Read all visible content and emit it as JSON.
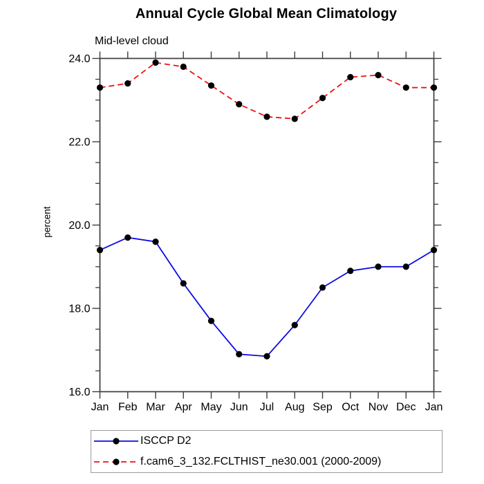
{
  "title": "Annual Cycle Global Mean Climatology",
  "subtitle": "Mid-level cloud",
  "ylabel": "percent",
  "colors": {
    "axis": "#3c3c3c",
    "marker": "#000000",
    "series_blue": "#0a0ae0",
    "series_red": "#ee1111",
    "legend_border": "#9a9a9a"
  },
  "chart_data": {
    "type": "line",
    "categories": [
      "Jan",
      "Feb",
      "Mar",
      "Apr",
      "May",
      "Jun",
      "Jul",
      "Aug",
      "Sep",
      "Oct",
      "Nov",
      "Dec",
      "Jan"
    ],
    "series": [
      {
        "name": "ISCCP D2",
        "color": "#0a0ae0",
        "line_style": "solid",
        "marker": "circle",
        "marker_color": "#000000",
        "values": [
          19.4,
          19.7,
          19.6,
          18.6,
          17.7,
          16.9,
          16.85,
          17.6,
          18.5,
          18.9,
          19.0,
          19.0,
          19.4
        ]
      },
      {
        "name": "f.cam6_3_132.FCLTHIST_ne30.001 (2000-2009)",
        "color": "#ee1111",
        "line_style": "dashed",
        "marker": "circle",
        "marker_color": "#000000",
        "values": [
          23.3,
          23.4,
          23.9,
          23.8,
          23.35,
          22.9,
          22.6,
          22.55,
          23.05,
          23.55,
          23.6,
          23.3,
          23.3
        ]
      }
    ],
    "xlabel": "",
    "ylabel": "percent",
    "ylim": [
      16.0,
      24.0
    ],
    "ytick_major": [
      16.0,
      18.0,
      20.0,
      22.0,
      24.0
    ],
    "ytick_labels": [
      "16.0",
      "18.0",
      "20.0",
      "22.0",
      "24.0"
    ],
    "ytick_minor_step": 0.5,
    "grid": false,
    "legend_position": "bottom-left"
  }
}
